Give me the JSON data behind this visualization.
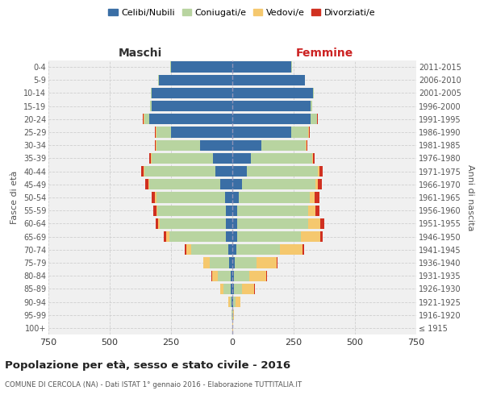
{
  "age_groups": [
    "100+",
    "95-99",
    "90-94",
    "85-89",
    "80-84",
    "75-79",
    "70-74",
    "65-69",
    "60-64",
    "55-59",
    "50-54",
    "45-49",
    "40-44",
    "35-39",
    "30-34",
    "25-29",
    "20-24",
    "15-19",
    "10-14",
    "5-9",
    "0-4"
  ],
  "birth_years": [
    "≤ 1915",
    "1916-1920",
    "1921-1925",
    "1926-1930",
    "1931-1935",
    "1936-1940",
    "1941-1945",
    "1946-1950",
    "1951-1955",
    "1956-1960",
    "1961-1965",
    "1966-1970",
    "1971-1975",
    "1976-1980",
    "1981-1985",
    "1986-1990",
    "1991-1995",
    "1996-2000",
    "2001-2005",
    "2006-2010",
    "2011-2015"
  ],
  "male": {
    "celibi": [
      0,
      0,
      2,
      5,
      8,
      12,
      18,
      25,
      25,
      25,
      30,
      50,
      70,
      80,
      130,
      250,
      340,
      330,
      330,
      300,
      250
    ],
    "coniugati": [
      1,
      2,
      8,
      30,
      50,
      80,
      150,
      230,
      270,
      280,
      280,
      290,
      290,
      250,
      180,
      60,
      20,
      5,
      2,
      2,
      2
    ],
    "vedovi": [
      0,
      2,
      5,
      15,
      25,
      25,
      20,
      15,
      8,
      5,
      5,
      3,
      2,
      2,
      2,
      2,
      2,
      0,
      0,
      0,
      0
    ],
    "divorziati": [
      0,
      0,
      0,
      0,
      2,
      3,
      5,
      8,
      10,
      12,
      15,
      12,
      10,
      8,
      5,
      3,
      2,
      0,
      0,
      0,
      0
    ]
  },
  "female": {
    "nubili": [
      0,
      0,
      2,
      5,
      8,
      10,
      15,
      20,
      20,
      20,
      25,
      40,
      60,
      75,
      120,
      240,
      320,
      320,
      330,
      295,
      240
    ],
    "coniugate": [
      1,
      3,
      10,
      35,
      60,
      90,
      180,
      260,
      290,
      290,
      290,
      300,
      290,
      250,
      180,
      70,
      25,
      5,
      2,
      2,
      2
    ],
    "vedove": [
      1,
      5,
      20,
      50,
      70,
      80,
      90,
      80,
      50,
      30,
      20,
      10,
      5,
      3,
      2,
      2,
      2,
      0,
      0,
      0,
      0
    ],
    "divorziate": [
      0,
      0,
      0,
      2,
      3,
      5,
      8,
      10,
      15,
      15,
      20,
      15,
      12,
      8,
      5,
      3,
      2,
      0,
      0,
      0,
      0
    ]
  },
  "colors": {
    "celibi": "#3a6ea5",
    "coniugati": "#b8d4a0",
    "vedovi": "#f5c86e",
    "divorziati": "#d03020"
  },
  "title": "Popolazione per età, sesso e stato civile - 2016",
  "subtitle": "COMUNE DI CERCOLA (NA) - Dati ISTAT 1° gennaio 2016 - Elaborazione TUTTITALIA.IT",
  "xlabel_left": "Maschi",
  "xlabel_right": "Femmine",
  "ylabel_left": "Fasce di età",
  "ylabel_right": "Anni di nascita",
  "xlim": 750,
  "legend_labels": [
    "Celibi/Nubili",
    "Coniugati/e",
    "Vedovi/e",
    "Divorziati/e"
  ],
  "bg_color": "#ffffff",
  "grid_color": "#cccccc"
}
